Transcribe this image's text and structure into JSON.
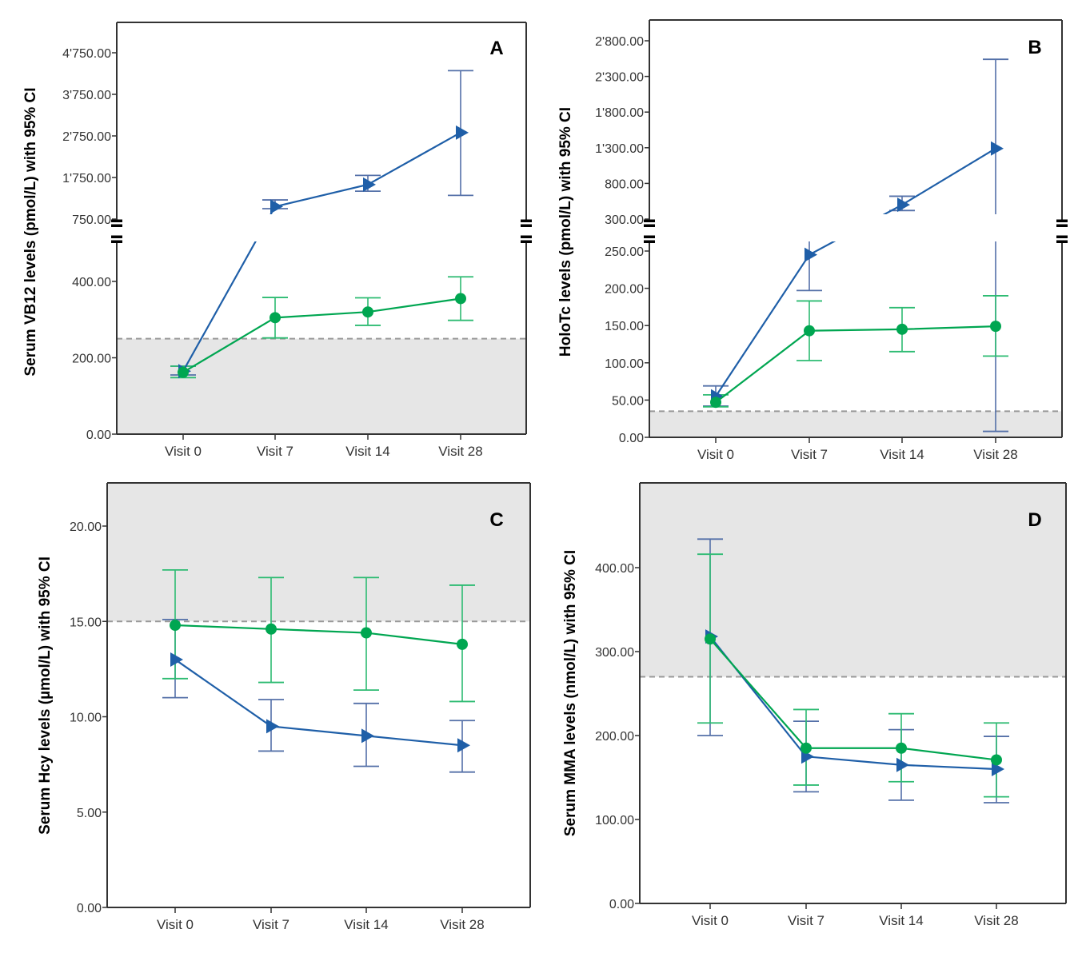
{
  "figure": {
    "colors": {
      "blue_series": "#1f5fa8",
      "blue_errorbar": "#5470a8",
      "green_series": "#00a651",
      "green_errorbar": "#2dbb72",
      "reference_shading": "#e6e6e6",
      "reference_line": "#999999",
      "axis": "#333333"
    }
  },
  "chart_data": [
    {
      "id": "A",
      "panel_label": "A",
      "type": "line",
      "errorbars": "95% CI",
      "ylabel": "Serum VB12 levels (pmol/L) with 95% CI",
      "xlabel": "",
      "categories": [
        "Visit 0",
        "Visit 7",
        "Visit 14",
        "Visit 28"
      ],
      "axis_break": true,
      "ylim_lower": [
        0,
        650
      ],
      "ylim_upper": [
        650,
        5150
      ],
      "yticks_lower": [
        0,
        200,
        400
      ],
      "yticks_upper": [
        750,
        1750,
        2750,
        3750,
        4750
      ],
      "ytick_labels_lower": [
        "0.00",
        "200.00",
        "400.00"
      ],
      "ytick_labels_upper": [
        "750.00",
        "1'750.00",
        "2'750.00",
        "3'750.00",
        "4'750.00"
      ],
      "reference": {
        "value": 250,
        "shade": "below"
      },
      "grid": false,
      "series": [
        {
          "name": "blue-triangle-group",
          "marker": "triangle-right",
          "color_key": "blue_series",
          "values": [
            165,
            1050,
            1580,
            2830
          ],
          "ci_low": [
            155,
            1000,
            1420,
            1320
          ],
          "ci_high": [
            178,
            1210,
            1800,
            4320
          ]
        },
        {
          "name": "green-circle-group",
          "marker": "circle",
          "color_key": "green_series",
          "values": [
            162,
            305,
            320,
            355
          ],
          "ci_low": [
            148,
            252,
            285,
            298
          ],
          "ci_high": [
            178,
            358,
            357,
            412
          ]
        }
      ]
    },
    {
      "id": "B",
      "panel_label": "B",
      "type": "line",
      "errorbars": "95% CI",
      "ylabel": "HoloTc levels (pmol/L) with 95% CI",
      "xlabel": "",
      "categories": [
        "Visit 0",
        "Visit 7",
        "Visit 14",
        "Visit 28"
      ],
      "axis_break": true,
      "ylim_lower": [
        0,
        260
      ],
      "ylim_upper": [
        300,
        3050
      ],
      "yticks_lower": [
        0,
        50,
        100,
        150,
        200,
        250
      ],
      "yticks_upper": [
        300,
        800,
        1300,
        1800,
        2300,
        2800
      ],
      "ytick_labels_lower": [
        "0.00",
        "50.00",
        "100.00",
        "150.00",
        "200.00",
        "250.00"
      ],
      "ytick_labels_upper": [
        "300.00",
        "800.00",
        "1'300.00",
        "1'800.00",
        "2'300.00",
        "2'800.00"
      ],
      "reference": {
        "value": 35,
        "shade": "below"
      },
      "grid": false,
      "series": [
        {
          "name": "blue-triangle-group",
          "marker": "triangle-right",
          "color_key": "blue_series",
          "values": [
            55,
            245,
            500,
            1290
          ],
          "ci_low": [
            42,
            197,
            420,
            8
          ],
          "ci_high": [
            69,
            330,
            620,
            2540
          ]
        },
        {
          "name": "green-circle-group",
          "marker": "circle",
          "color_key": "green_series",
          "values": [
            47,
            143,
            145,
            149
          ],
          "ci_low": [
            41,
            103,
            115,
            109
          ],
          "ci_high": [
            57,
            183,
            174,
            190
          ]
        }
      ]
    },
    {
      "id": "C",
      "panel_label": "C",
      "type": "line",
      "errorbars": "95% CI",
      "ylabel": "Serum Hcy levels (µmol/L) with 95% CI",
      "xlabel": "",
      "categories": [
        "Visit 0",
        "Visit 7",
        "Visit 14",
        "Visit 28"
      ],
      "axis_break": false,
      "ylim": [
        0,
        22.3
      ],
      "yticks": [
        0,
        5,
        10,
        15,
        20
      ],
      "ytick_labels": [
        "0.00",
        "5.00",
        "10.00",
        "15.00",
        "20.00"
      ],
      "reference": {
        "value": 15,
        "shade": "above"
      },
      "grid": false,
      "series": [
        {
          "name": "blue-triangle-group",
          "marker": "triangle-right",
          "color_key": "blue_series",
          "values": [
            13.0,
            9.5,
            9.0,
            8.5
          ],
          "ci_low": [
            11.0,
            8.2,
            7.4,
            7.1
          ],
          "ci_high": [
            15.1,
            10.9,
            10.7,
            9.8
          ]
        },
        {
          "name": "green-circle-group",
          "marker": "circle",
          "color_key": "green_series",
          "values": [
            14.8,
            14.6,
            14.4,
            13.8
          ],
          "ci_low": [
            12.0,
            11.8,
            11.4,
            10.8
          ],
          "ci_high": [
            17.7,
            17.3,
            17.3,
            16.9
          ]
        }
      ]
    },
    {
      "id": "D",
      "panel_label": "D",
      "type": "line",
      "errorbars": "95% CI",
      "ylabel": "Serum MMA levels (nmol/L) with 95% CI",
      "xlabel": "",
      "categories": [
        "Visit 0",
        "Visit 7",
        "Visit 14",
        "Visit 28"
      ],
      "axis_break": false,
      "ylim": [
        0,
        500
      ],
      "yticks": [
        0,
        100,
        200,
        300,
        400
      ],
      "ytick_labels": [
        "0.00",
        "100.00",
        "200.00",
        "300.00",
        "400.00"
      ],
      "reference": {
        "value": 270,
        "shade": "above"
      },
      "grid": false,
      "series": [
        {
          "name": "blue-triangle-group",
          "marker": "triangle-right",
          "color_key": "blue_series",
          "values": [
            318,
            175,
            165,
            160
          ],
          "ci_low": [
            200,
            133,
            123,
            120
          ],
          "ci_high": [
            434,
            217,
            207,
            199
          ]
        },
        {
          "name": "green-circle-group",
          "marker": "circle",
          "color_key": "green_series",
          "values": [
            315,
            185,
            185,
            171
          ],
          "ci_low": [
            215,
            141,
            145,
            127
          ],
          "ci_high": [
            416,
            231,
            226,
            215
          ]
        }
      ]
    }
  ]
}
